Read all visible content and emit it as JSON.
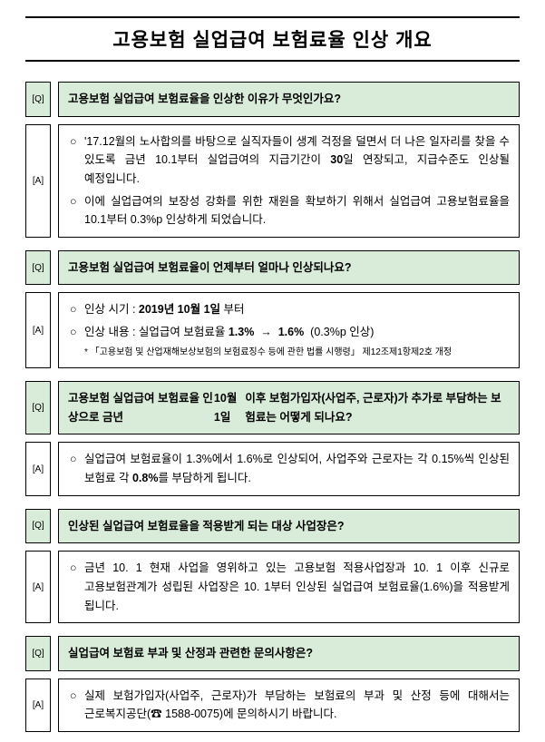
{
  "title": "고용보험 실업급여 보험료율 인상 개요",
  "colors": {
    "q_bg": "#d9ecd9",
    "a_bg": "#ffffff",
    "border": "#000000",
    "page_bg": "#ffffff",
    "outer_bg": "#cccccc"
  },
  "qa": [
    {
      "q_tag": "[Q]",
      "a_tag": "[A]",
      "question": "고용보험 실업급여 보험료율을 인상한 이유가 무엇인가요?",
      "answers": [
        "'17.12월의 노사합의를 바탕으로 실직자들이 생계 걱정을 덜면서 더 나은 일자리를 찾을 수 있도록 금년 10.1부터 실업급여의 지급기간이 <b>30</b>일 연장되고, 지급수준도 인상될 예정입니다.",
        "이에 실업급여의 보장성 강화를 위한 재원을 확보하기 위해서 실업급여 고용보험료율을 10.1부터 0.3%p 인상하게 되었습니다."
      ]
    },
    {
      "q_tag": "[Q]",
      "a_tag": "[A]",
      "question": "고용보험 실업급여 보험료율이 언제부터 얼마나 인상되나요?",
      "answers": [
        "인상 시기 : <b>2019년 10월 1일</b> 부터",
        "인상 내용 : 실업급여 보험료율 <b>1.3% &nbsp;→&nbsp; 1.6%</b> &nbsp;(0.3%p 인상)"
      ],
      "note": "* 「고용보험 및 산업재해보상보험의 보험료징수 등에 관한 법률 시행령」 제12조제1항제2호 개정"
    },
    {
      "q_tag": "[Q]",
      "a_tag": "[A]",
      "question": "고용보험 실업급여 보험료율 인상으로 금년 <b>10월 1일</b> 이후 보험가입자(사업주, 근로자)가 추가로 부담하는 보험료는 어떻게 되나요?",
      "answers": [
        "실업급여 보험료율이 1.3%에서 1.6%로 인상되어, 사업주와 근로자는 각 0.15%씩 인상된 보험료 각 <b>0.8%</b>를 부담하게 됩니다."
      ]
    },
    {
      "q_tag": "[Q]",
      "a_tag": "[A]",
      "question": "인상된 실업급여 보험료율을 적용받게 되는 대상 사업장은?",
      "answers": [
        "금년 10. 1 현재 사업을 영위하고 있는 고용보험 적용사업장과 10. 1 이후 신규로 고용보험관계가 성립된 사업장은 10. 1부터 인상된 실업급여 보험료율(1.6%)을 적용받게 됩니다."
      ]
    },
    {
      "q_tag": "[Q]",
      "a_tag": "[A]",
      "question": "실업급여 보험료 부과 및 산정과 관련한 문의사항은?",
      "answers": [
        "실제 보험가입자(사업주, 근로자)가 부담하는 보험료의 부과 및 산정 등에 대해서는 근로복지공단(☎ 1588-0075)에 문의하시기 바랍니다."
      ]
    }
  ]
}
